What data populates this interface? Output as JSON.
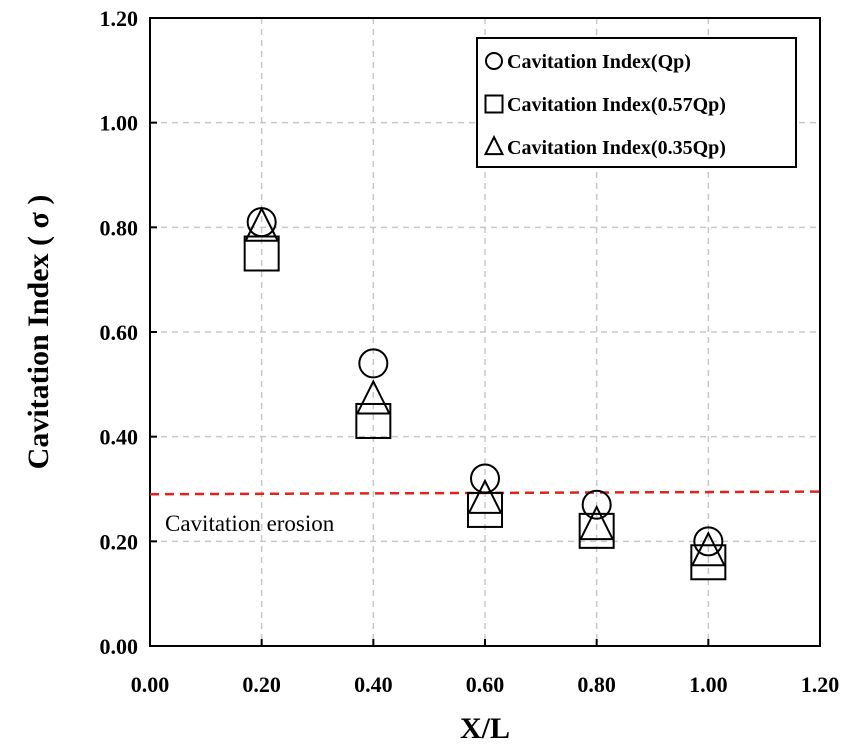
{
  "chart_data": {
    "type": "scatter",
    "title": "",
    "xlabel": "X/L",
    "ylabel": "Cavitation Index ( σ )",
    "xlim": [
      0,
      1.2
    ],
    "ylim": [
      0,
      1.2
    ],
    "x_ticks": [
      "0.00",
      "0.20",
      "0.40",
      "0.60",
      "0.80",
      "1.00",
      "1.20"
    ],
    "y_ticks": [
      "0.00",
      "0.20",
      "0.40",
      "0.60",
      "0.80",
      "1.00",
      "1.20"
    ],
    "grid": true,
    "legend_position": "top-right",
    "series": [
      {
        "name": "Cavitation Index(Qp)",
        "marker": "circle",
        "x": [
          0.2,
          0.4,
          0.6,
          0.8,
          1.0
        ],
        "y": [
          0.81,
          0.54,
          0.32,
          0.27,
          0.2
        ]
      },
      {
        "name": "Cavitation Index(0.57Qp)",
        "marker": "square",
        "x": [
          0.2,
          0.4,
          0.6,
          0.8,
          1.0
        ],
        "y": [
          0.75,
          0.43,
          0.26,
          0.22,
          0.16
        ]
      },
      {
        "name": "Cavitation Index(0.35Qp)",
        "marker": "triangle",
        "x": [
          0.2,
          0.4,
          0.6,
          0.8,
          1.0
        ],
        "y": [
          0.8,
          0.47,
          0.28,
          0.23,
          0.18
        ]
      }
    ],
    "reference_line": {
      "label": "Cavitation erosion",
      "y_start": 0.29,
      "y_end": 0.295,
      "color": "#e8201c",
      "style": "dashed"
    }
  }
}
